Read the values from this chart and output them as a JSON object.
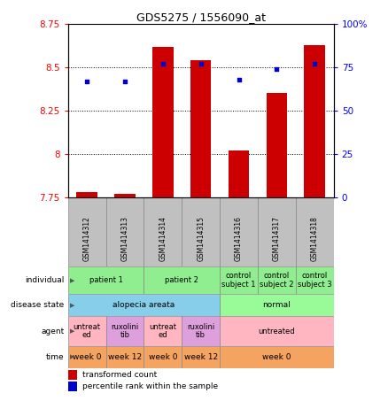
{
  "title": "GDS5275 / 1556090_at",
  "samples": [
    "GSM1414312",
    "GSM1414313",
    "GSM1414314",
    "GSM1414315",
    "GSM1414316",
    "GSM1414317",
    "GSM1414318"
  ],
  "transformed_count": [
    7.78,
    7.77,
    8.62,
    8.54,
    8.02,
    8.35,
    8.63
  ],
  "percentile_rank": [
    67,
    67,
    77,
    77,
    68,
    74,
    77
  ],
  "ylim_left": [
    7.75,
    8.75
  ],
  "ylim_right": [
    0,
    100
  ],
  "yticks_left": [
    7.75,
    8.0,
    8.25,
    8.5,
    8.75
  ],
  "yticks_right": [
    0,
    25,
    50,
    75,
    100
  ],
  "ytick_labels_left": [
    "7.75",
    "8",
    "8.25",
    "8.5",
    "8.75"
  ],
  "ytick_labels_right": [
    "0",
    "25",
    "50",
    "75",
    "100%"
  ],
  "bar_color": "#CC0000",
  "dot_color": "#0000CC",
  "bar_bottom": 7.75,
  "individual_color": "#90EE90",
  "disease_alopecia_color": "#87CEEB",
  "disease_normal_color": "#98FB98",
  "agent_untreated_color": "#FFB6C1",
  "agent_ruxolini_color": "#DDA0DD",
  "time_color": "#F4A460",
  "sample_header_color": "#C0C0C0"
}
